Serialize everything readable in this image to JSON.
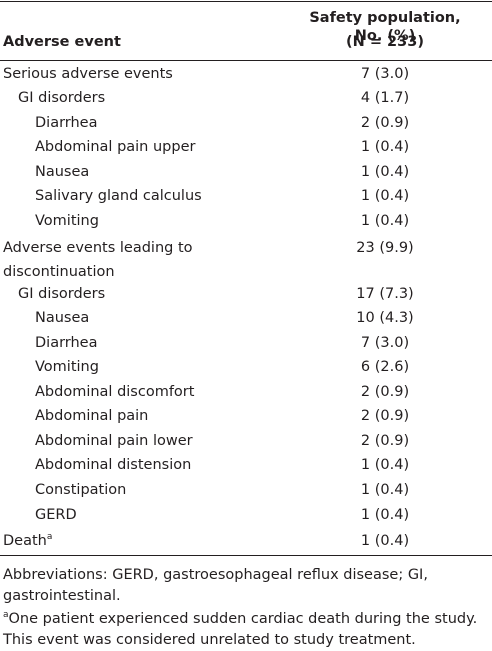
{
  "table": {
    "header": {
      "col1": "Adverse event",
      "col2_line1": "Safety population, No. (%)",
      "col2_line2": "(N = 233)"
    },
    "rows": [
      [
        "Serious adverse events",
        "7 (3.0)"
      ],
      [
        "GI disorders",
        "4 (1.7)"
      ],
      [
        "Diarrhea",
        "2 (0.9)"
      ],
      [
        "Abdominal pain upper",
        "1 (0.4)"
      ],
      [
        "Nausea",
        "1 (0.4)"
      ],
      [
        "Salivary gland calculus",
        "1 (0.4)"
      ],
      [
        "Vomiting",
        "1 (0.4)"
      ],
      [
        "Adverse events leading to discontinuation",
        "23 (9.9)"
      ],
      [
        "GI disorders",
        "17 (7.3)"
      ],
      [
        "Nausea",
        "10 (4.3)"
      ],
      [
        "Diarrhea",
        "7 (3.0)"
      ],
      [
        "Vomiting",
        "6 (2.6)"
      ],
      [
        "Abdominal discomfort",
        "2 (0.9)"
      ],
      [
        "Abdominal pain",
        "2 (0.9)"
      ],
      [
        "Abdominal pain lower",
        "2 (0.9)"
      ],
      [
        "Abdominal distension",
        "1 (0.4)"
      ],
      [
        "Constipation",
        "1 (0.4)"
      ],
      [
        "GERD",
        "1 (0.4)"
      ],
      [
        "Death",
        "1 (0.4)",
        "a"
      ]
    ]
  },
  "footnotes": {
    "abbreviations": "Abbreviations: GERD, gastroesophageal reflux disease; GI, gastrointestinal.",
    "note_marker": "a",
    "note": "One patient experienced sudden cardiac death during the study. This event was considered unrelated to study treatment."
  }
}
